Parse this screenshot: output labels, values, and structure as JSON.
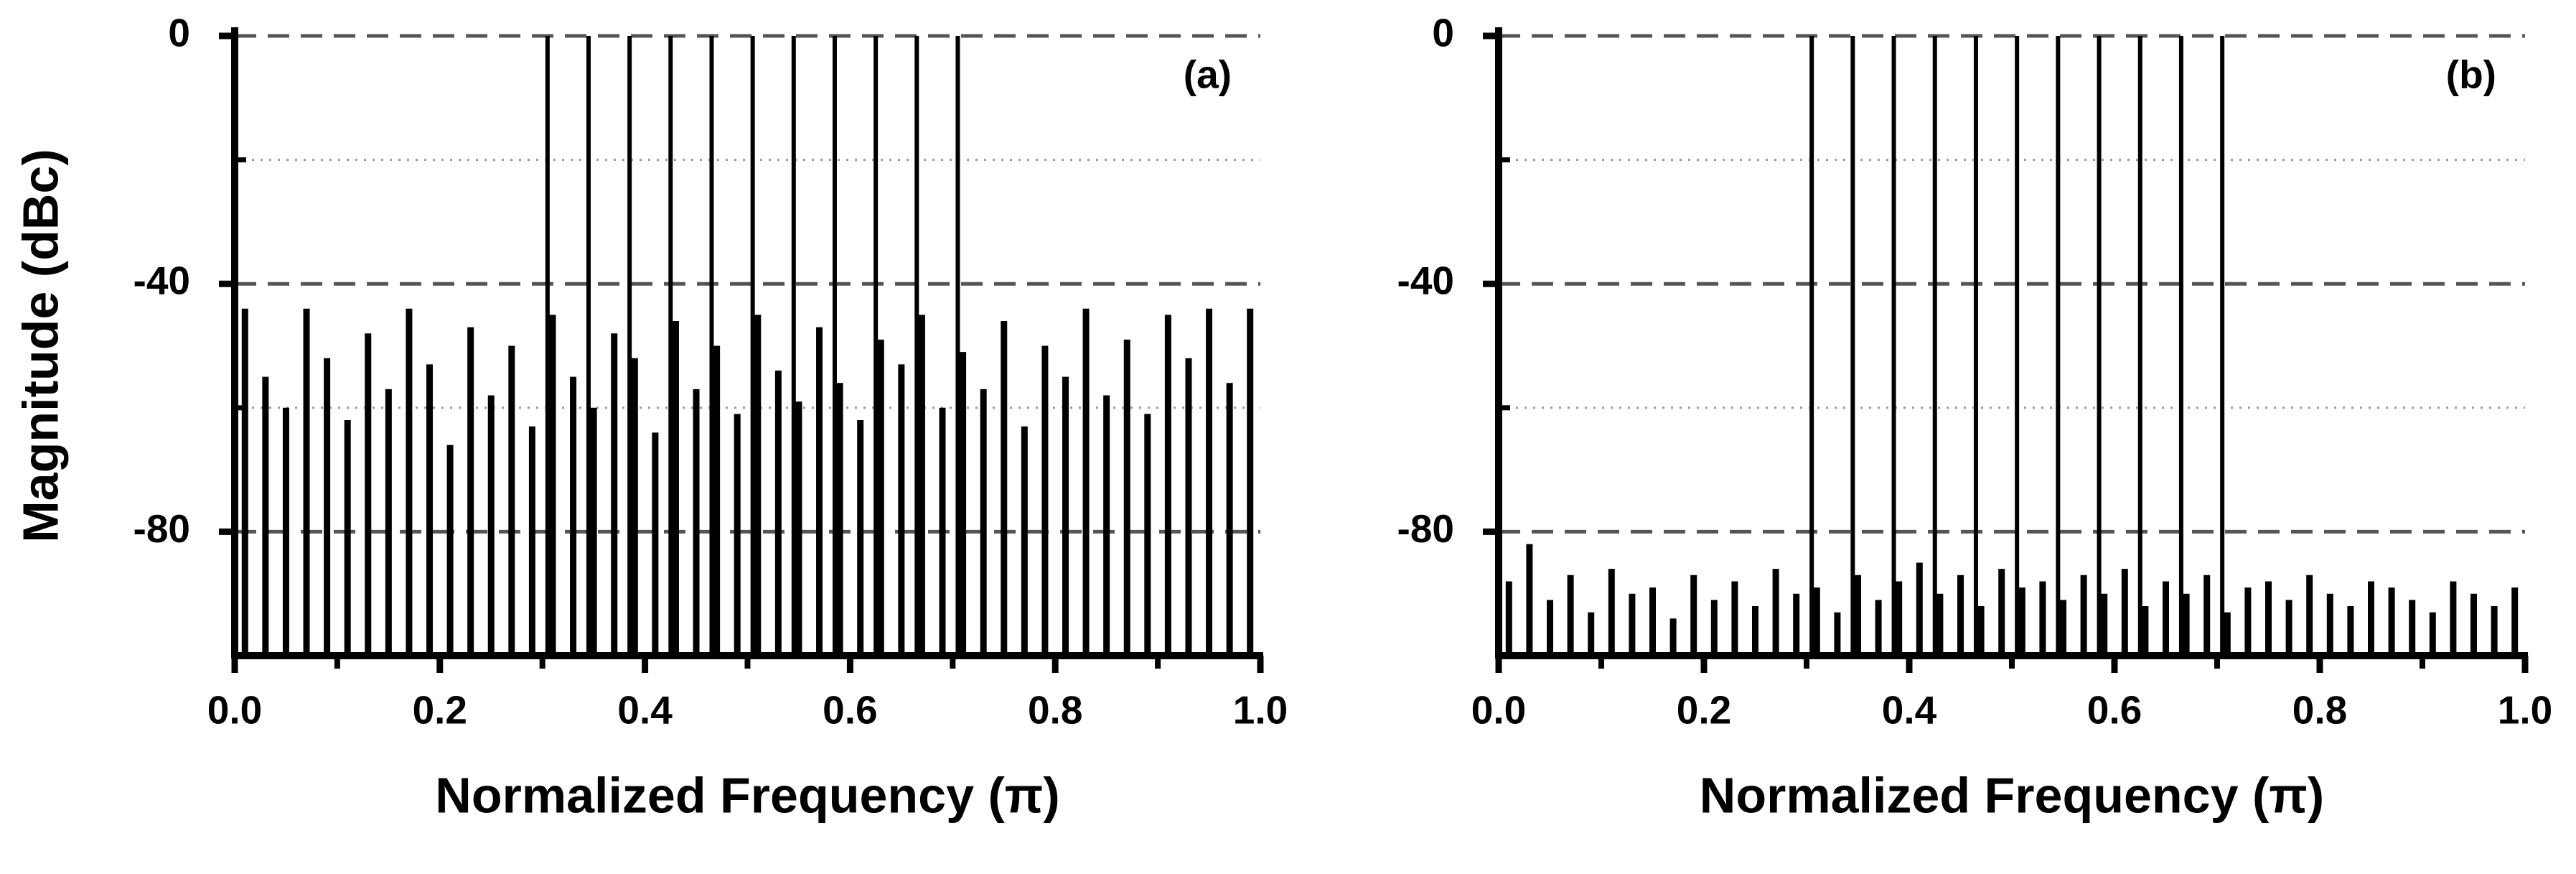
{
  "chart_data": [
    {
      "type": "stem",
      "panel_label": "(a)",
      "xlabel": "Normalized Frequency (π)",
      "ylabel": "Magnitude (dBc)",
      "xlim": [
        0,
        1
      ],
      "ylim": [
        -100,
        0
      ],
      "xticks": [
        {
          "value": 0,
          "label": "0.0"
        },
        {
          "value": 0.2,
          "label": "0.2"
        },
        {
          "value": 0.4,
          "label": "0.4"
        },
        {
          "value": 0.6,
          "label": "0.6"
        },
        {
          "value": 0.8,
          "label": "0.8"
        },
        {
          "value": 1,
          "label": "1.0"
        }
      ],
      "minor_xticks": [
        0.1,
        0.3,
        0.5,
        0.7,
        0.9
      ],
      "yticks": [
        -80,
        -40,
        0
      ],
      "minor_yticks": [
        -100,
        -60,
        -20
      ],
      "grid": true,
      "series": [
        {
          "color": "#000000",
          "x": [
            0.305,
            0.345,
            0.385,
            0.425,
            0.465,
            0.505,
            0.545,
            0.585,
            0.625,
            0.665,
            0.705
          ],
          "values": [
            0,
            0,
            0,
            0,
            0,
            0,
            0,
            0,
            0,
            0,
            0
          ]
        },
        {
          "color": "#000000",
          "x": [
            0.01,
            0.03,
            0.05,
            0.07,
            0.09,
            0.11,
            0.13,
            0.15,
            0.17,
            0.19,
            0.21,
            0.23,
            0.25,
            0.27,
            0.29,
            0.31,
            0.33,
            0.35,
            0.37,
            0.39,
            0.41,
            0.43,
            0.45,
            0.47,
            0.49,
            0.51,
            0.53,
            0.55,
            0.57,
            0.59,
            0.61,
            0.63,
            0.65,
            0.67,
            0.69,
            0.71,
            0.73,
            0.75,
            0.77,
            0.79,
            0.81,
            0.83,
            0.85,
            0.87,
            0.89,
            0.91,
            0.93,
            0.95,
            0.97,
            0.99
          ],
          "values": [
            -44,
            -55,
            -60,
            -44,
            -52,
            -62,
            -48,
            -57,
            -44,
            -53,
            -66,
            -47,
            -58,
            -50,
            -63,
            -45,
            -55,
            -60,
            -48,
            -52,
            -64,
            -46,
            -57,
            -50,
            -61,
            -45,
            -54,
            -59,
            -47,
            -56,
            -62,
            -49,
            -53,
            -45,
            -60,
            -51,
            -57,
            -46,
            -63,
            -50,
            -55,
            -44,
            -58,
            -49,
            -61,
            -45,
            -52,
            -44,
            -56,
            -44
          ]
        }
      ]
    },
    {
      "type": "stem",
      "panel_label": "(b)",
      "xlabel": "Normalized Frequency (π)",
      "xlim": [
        0,
        1
      ],
      "ylim": [
        -100,
        0
      ],
      "xticks": [
        {
          "value": 0,
          "label": "0.0"
        },
        {
          "value": 0.2,
          "label": "0.2"
        },
        {
          "value": 0.4,
          "label": "0.4"
        },
        {
          "value": 0.6,
          "label": "0.6"
        },
        {
          "value": 0.8,
          "label": "0.8"
        },
        {
          "value": 1,
          "label": "1.0"
        }
      ],
      "minor_xticks": [
        0.1,
        0.3,
        0.5,
        0.7,
        0.9
      ],
      "yticks": [
        -80,
        -40,
        0
      ],
      "minor_yticks": [
        -100,
        -60,
        -20
      ],
      "grid": true,
      "series": [
        {
          "color": "#000000",
          "x": [
            0.305,
            0.345,
            0.385,
            0.425,
            0.465,
            0.505,
            0.545,
            0.585,
            0.625,
            0.665,
            0.705
          ],
          "values": [
            0,
            0,
            0,
            0,
            0,
            0,
            0,
            0,
            0,
            0,
            0
          ]
        },
        {
          "color": "#000000",
          "x": [
            0.01,
            0.03,
            0.05,
            0.07,
            0.09,
            0.11,
            0.13,
            0.15,
            0.17,
            0.19,
            0.21,
            0.23,
            0.25,
            0.27,
            0.29,
            0.31,
            0.33,
            0.35,
            0.37,
            0.39,
            0.41,
            0.43,
            0.45,
            0.47,
            0.49,
            0.51,
            0.53,
            0.55,
            0.57,
            0.59,
            0.61,
            0.63,
            0.65,
            0.67,
            0.69,
            0.71,
            0.73,
            0.75,
            0.77,
            0.79,
            0.81,
            0.83,
            0.85,
            0.87,
            0.89,
            0.91,
            0.93,
            0.95,
            0.97,
            0.99
          ],
          "values": [
            -88,
            -82,
            -91,
            -87,
            -93,
            -86,
            -90,
            -89,
            -94,
            -87,
            -91,
            -88,
            -92,
            -86,
            -90,
            -89,
            -93,
            -87,
            -91,
            -88,
            -85,
            -90,
            -87,
            -92,
            -86,
            -89,
            -88,
            -91,
            -87,
            -90,
            -86,
            -92,
            -88,
            -90,
            -87,
            -93,
            -89,
            -88,
            -91,
            -87,
            -90,
            -92,
            -88,
            -89,
            -91,
            -93,
            -88,
            -90,
            -92,
            -89
          ]
        }
      ]
    }
  ]
}
